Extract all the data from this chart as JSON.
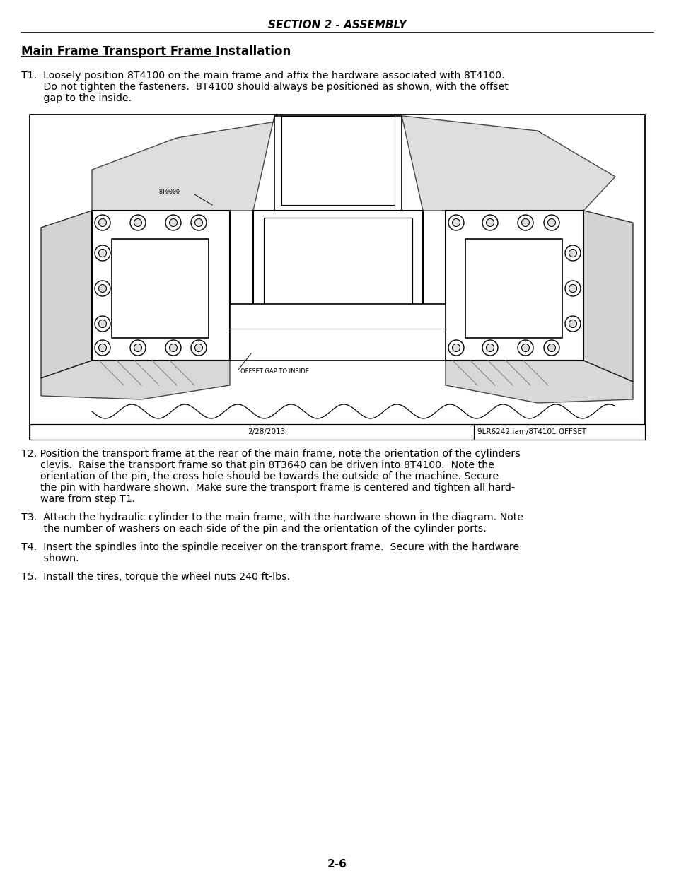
{
  "page_bg": "#ffffff",
  "header_text": "SECTION 2 - ASSEMBLY",
  "header_font_size": 11,
  "section_title": "Main Frame Transport Frame Installation",
  "section_title_font_size": 12,
  "body_font_size": 10.2,
  "page_number": "2-6",
  "t1_lines": [
    "T1.  Loosely position 8T4100 on the main frame and affix the hardware associated with 8T4100.",
    "       Do not tighten the fasteners.  8T4100 should always be positioned as shown, with the offset",
    "       gap to the inside."
  ],
  "t2_lines": [
    "T2. Position the transport frame at the rear of the main frame, note the orientation of the cylinders",
    "      clevis.  Raise the transport frame so that pin 8T3640 can be driven into 8T4100.  Note the",
    "      orientation of the pin, the cross hole should be towards the outside of the machine. Secure",
    "      the pin with hardware shown.  Make sure the transport frame is centered and tighten all hard-",
    "      ware from step T1."
  ],
  "t3_lines": [
    "T3.  Attach the hydraulic cylinder to the main frame, with the hardware shown in the diagram. Note",
    "       the number of washers on each side of the pin and the orientation of the cylinder ports."
  ],
  "t4_lines": [
    "T4.  Insert the spindles into the spindle receiver on the transport frame.  Secure with the hardware",
    "       shown."
  ],
  "t5_lines": [
    "T5.  Install the tires, torque the wheel nuts 240 ft-lbs."
  ],
  "diagram_label_8T0000": "8T0000",
  "diagram_label_offset": "OFFSET GAP TO INSIDE",
  "diagram_date": "2/28/2013",
  "diagram_file": "9LR6242.iam/8T4101 OFFSET"
}
